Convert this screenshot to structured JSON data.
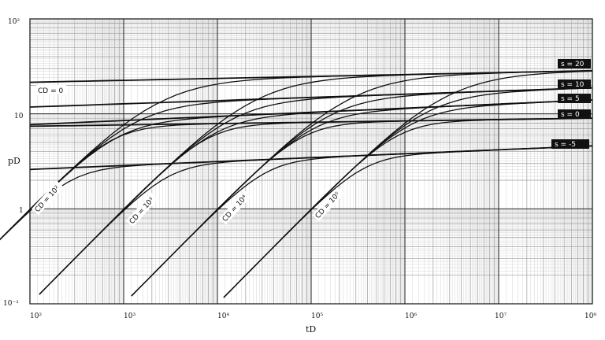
{
  "chart_data": {
    "type": "line",
    "title": "",
    "xlabel": "tD",
    "ylabel": "pD",
    "xscale": "log",
    "yscale": "log",
    "xlim": [
      100,
      100000000
    ],
    "ylim": [
      0.1,
      100
    ],
    "grid": true,
    "x_tick_labels": [
      "10²",
      "10³",
      "10⁴",
      "10⁵",
      "10⁶",
      "10⁷",
      "10⁸"
    ],
    "y_tick_labels": [
      "10⁻¹",
      "1",
      "10",
      "10²"
    ],
    "skin_labels": [
      "s = 20",
      "s = 10",
      "s = 5",
      "s = 0",
      "s = -5"
    ],
    "cd_labels": [
      "CD = 0",
      "CD = 10²",
      "CD = 10³",
      "CD = 10⁴",
      "CD = 10⁵"
    ],
    "skin_values": [
      20,
      10,
      5,
      0,
      -5
    ],
    "cd_values": [
      100,
      1000,
      10000,
      100000
    ],
    "cd0_series": [
      {
        "s": 20,
        "x": [
          100,
          100000000
        ],
        "y": [
          21.5,
          28.5
        ]
      },
      {
        "s": 10,
        "x": [
          100,
          100000000
        ],
        "y": [
          11.8,
          18.8
        ]
      },
      {
        "s": 5,
        "x": [
          100,
          100000000
        ],
        "y": [
          7.7,
          14.0
        ]
      },
      {
        "s": 0,
        "x": [
          100,
          100000000
        ],
        "y": [
          7.4,
          9.0
        ]
      },
      {
        "s": -5,
        "x": [
          100,
          100000000
        ],
        "y": [
          2.6,
          4.6
        ]
      }
    ]
  }
}
